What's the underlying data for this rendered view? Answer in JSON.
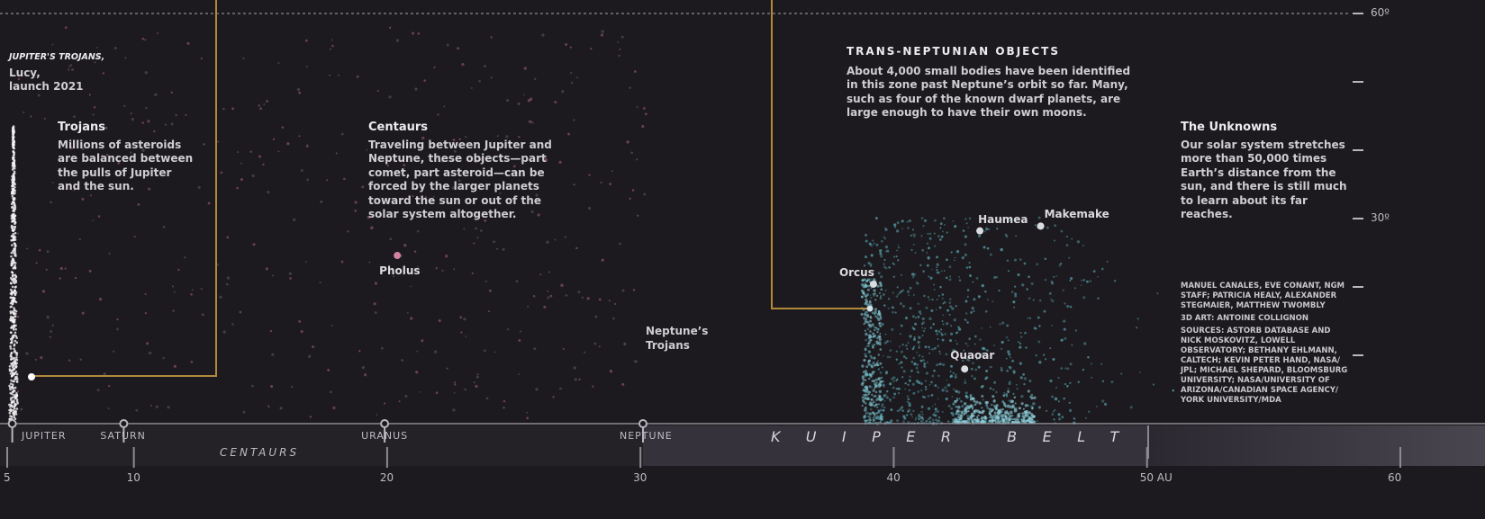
{
  "lucy": {
    "title": "JUPITER'S TROJANS,",
    "lines": [
      "Lucy,",
      "launch 2021"
    ]
  },
  "trojans": {
    "title": "Trojans",
    "lines": [
      "Millions of asteroids",
      "are balanced between",
      "the pulls of Jupiter",
      "and the sun."
    ]
  },
  "centaurs": {
    "title": "Centaurs",
    "lines": [
      "Traveling between Jupiter and",
      "Neptune, these objects—part",
      "comet, part asteroid—can be",
      "forced by the larger planets",
      "toward the sun or out of the",
      "solar system altogether."
    ]
  },
  "tno": {
    "title": "TRANS-NEPTUNIAN OBJECTS",
    "lines": [
      "About 4,000 small bodies have been identified",
      "in this zone past Neptune’s orbit so far. Many,",
      "such as four of the known dwarf planets, are",
      "large enough to have their own moons."
    ]
  },
  "unknowns": {
    "title": "The Unknowns",
    "lines": [
      "Our solar system stretches",
      "more than 50,000 times",
      "Earth’s distance from the",
      "sun, and there is still much",
      "to learn about its far reaches."
    ]
  },
  "neptune_trojans": {
    "lines": [
      "Neptune’s",
      "Trojans"
    ]
  },
  "credits": [
    [
      "MANUEL CANALES, EVE CONANT, NGM",
      "STAFF; PATRICIA HEALY, ALEXANDER",
      "STEGMAIER, MATTHEW TWOMBLY"
    ],
    [
      "3D ART: ANTOINE COLLIGNON"
    ],
    [
      "SOURCES: ASTORB DATABASE AND",
      "NICK MOSKOVITZ, LOWELL",
      "OBSERVATORY; BETHANY EHLMANN,",
      "CALTECH; KEVIN PETER HAND, NASA/",
      "JPL; MICHAEL SHEPARD, BLOOMSBURG",
      "UNIVERSITY; NASA/UNIVERSITY OF",
      "ARIZONA/CANADIAN SPACE AGENCY/",
      "YORK UNIVERSITY/MDA"
    ]
  ],
  "bands": {
    "centaurs": "CENTAURS",
    "kuiper_belt": "KUIPER BELT"
  },
  "planets": [
    {
      "name": "JUPITER",
      "au": 5.2
    },
    {
      "name": "SATURN",
      "au": 9.6
    },
    {
      "name": "URANUS",
      "au": 19.9
    },
    {
      "name": "NEPTUNE",
      "au": 30.1
    }
  ],
  "objects": [
    {
      "name": "Pholus",
      "au": 20.4,
      "inclination": 24.6
    },
    {
      "name": "Haumea",
      "au": 43.4,
      "inclination": 28.2
    },
    {
      "name": "Makemake",
      "au": 45.8,
      "inclination": 28.9
    },
    {
      "name": "Orcus",
      "au": 39.2,
      "inclination": 20.4
    },
    {
      "name": "Quaoar",
      "au": 42.8,
      "inclination": 8.0
    }
  ],
  "au_axis": {
    "lim": [
      5,
      60
    ],
    "ticks": [
      5,
      10,
      20,
      30,
      40,
      {
        "value": 50,
        "label": "50 AU"
      },
      60
    ]
  },
  "inclination_axis": {
    "lim": [
      0,
      60
    ],
    "ticks": [
      10,
      20,
      {
        "value": 30,
        "label": "30º"
      },
      40,
      50,
      {
        "value": 60,
        "label": "60º"
      }
    ]
  }
}
